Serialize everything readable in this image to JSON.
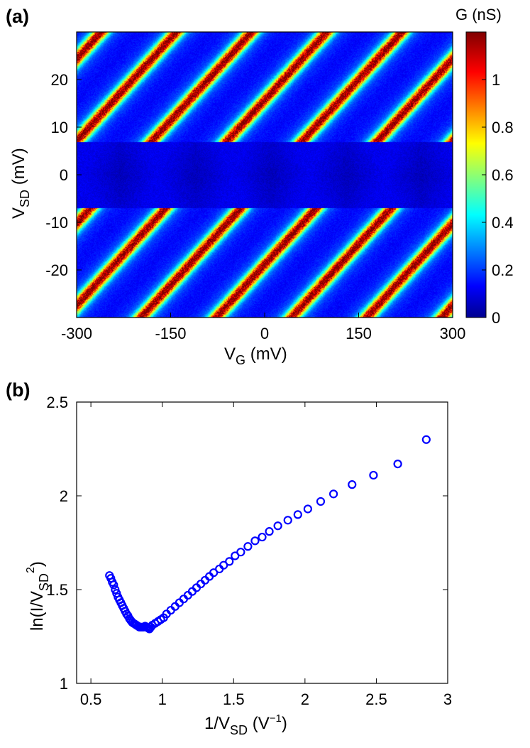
{
  "panel_a": {
    "label": "(a)",
    "colorbar_title": "G (nS)",
    "xlabel_main": "V",
    "xlabel_sub": "G",
    "xlabel_unit": " (mV)",
    "ylabel_main": "V",
    "ylabel_sub": "SD",
    "ylabel_unit": " (mV)"
  },
  "panel_b": {
    "label": "(b)",
    "xlabel_pre": "1/V",
    "xlabel_sub": "SD",
    "xlabel_mid": " (V",
    "xlabel_sup": "−1",
    "xlabel_post": ")",
    "ylabel_pre": "ln(I/V",
    "ylabel_sub": "SD",
    "ylabel_sup": "2",
    "ylabel_post": ")"
  },
  "chart_data": [
    {
      "type": "heatmap",
      "title": "",
      "xlabel": "V_G (mV)",
      "ylabel": "V_SD (mV)",
      "xlim": [
        -300,
        300
      ],
      "ylim": [
        -30,
        30
      ],
      "xticks": [
        -300,
        -150,
        0,
        150,
        300
      ],
      "xtick_labels": [
        "-300",
        "-150",
        "0",
        "150",
        "300"
      ],
      "yticks": [
        20,
        10,
        0,
        -10,
        -20
      ],
      "ytick_labels": [
        "20",
        "10",
        "0",
        "-10",
        "-20"
      ],
      "colorbar": {
        "label": "G (nS)",
        "range": [
          0,
          1.2
        ],
        "ticks": [
          1,
          0.8,
          0.6,
          0.4,
          0.2,
          0
        ],
        "tick_labels": [
          "1",
          "0.8",
          "0.6",
          "0.4",
          "0.2",
          "0"
        ],
        "colormap": "jet"
      },
      "features": {
        "description": "Coulomb diamonds: low-conductance blockade regions near V_SD = 0 with diagonal high-conductance ridges",
        "diamond_period_mV": 120,
        "ridge_slope_mV_per_mV": 0.144,
        "ridge_onset_mV": 7,
        "peak_conductance_nS": 1.15
      }
    },
    {
      "type": "scatter",
      "title": "",
      "xlabel": "1/V_SD (V^-1)",
      "ylabel": "ln(I/V_SD^2)",
      "xlim": [
        0.4,
        3
      ],
      "ylim": [
        1,
        2.5
      ],
      "xticks": [
        0.5,
        1,
        1.5,
        2,
        2.5,
        3
      ],
      "xtick_labels": [
        "0.5",
        "1",
        "1.5",
        "2",
        "2.5",
        "3"
      ],
      "yticks": [
        1,
        1.5,
        2,
        2.5
      ],
      "ytick_labels": [
        "1",
        "1.5",
        "2",
        "2.5"
      ],
      "marker": "circle-open",
      "color": "#0000ff",
      "x": [
        0.63,
        0.64,
        0.65,
        0.66,
        0.67,
        0.68,
        0.69,
        0.7,
        0.71,
        0.72,
        0.73,
        0.74,
        0.75,
        0.76,
        0.77,
        0.78,
        0.79,
        0.8,
        0.81,
        0.82,
        0.83,
        0.84,
        0.85,
        0.86,
        0.87,
        0.88,
        0.89,
        0.9,
        0.91,
        0.92,
        0.93,
        0.95,
        0.97,
        0.99,
        1.01,
        1.03,
        1.06,
        1.09,
        1.12,
        1.15,
        1.18,
        1.21,
        1.24,
        1.27,
        1.3,
        1.33,
        1.36,
        1.4,
        1.43,
        1.47,
        1.51,
        1.55,
        1.6,
        1.65,
        1.7,
        1.75,
        1.81,
        1.88,
        1.95,
        2.02,
        2.11,
        2.2,
        2.33,
        2.48,
        2.65,
        2.85
      ],
      "y": [
        1.575,
        1.56,
        1.54,
        1.525,
        1.5,
        1.48,
        1.46,
        1.445,
        1.43,
        1.415,
        1.4,
        1.385,
        1.37,
        1.36,
        1.345,
        1.335,
        1.325,
        1.32,
        1.315,
        1.31,
        1.305,
        1.3,
        1.3,
        1.3,
        1.3,
        1.305,
        1.3,
        1.295,
        1.29,
        1.3,
        1.31,
        1.32,
        1.33,
        1.34,
        1.35,
        1.37,
        1.39,
        1.41,
        1.43,
        1.45,
        1.47,
        1.49,
        1.51,
        1.53,
        1.55,
        1.57,
        1.59,
        1.61,
        1.63,
        1.65,
        1.68,
        1.7,
        1.73,
        1.76,
        1.78,
        1.81,
        1.84,
        1.87,
        1.9,
        1.93,
        1.97,
        2.01,
        2.06,
        2.11,
        2.17,
        2.3
      ]
    }
  ]
}
